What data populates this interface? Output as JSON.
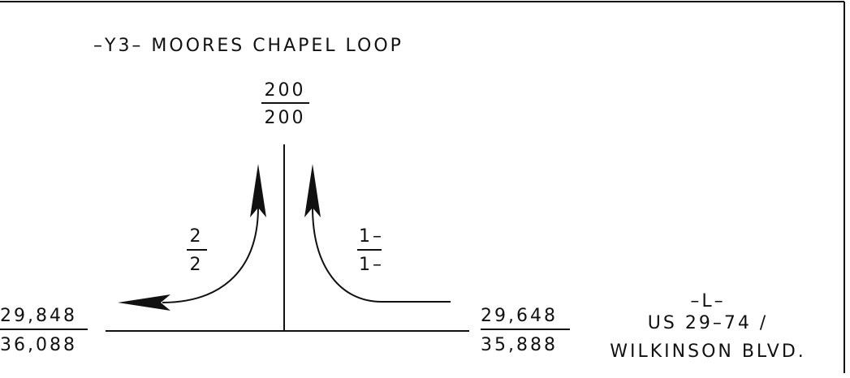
{
  "title": "–Y3– MOORES CHAPEL LOOP",
  "north": {
    "top": "200",
    "bottom": "200"
  },
  "left_turn": {
    "top": "2",
    "bottom": "2"
  },
  "right_turn": {
    "top": "1–",
    "bottom": "1–"
  },
  "west": {
    "top": "29,848",
    "bottom": "36,088"
  },
  "east": {
    "top": "29,648",
    "bottom": "35,888"
  },
  "road": {
    "designation": "–L–",
    "route": "US 29–74 /",
    "name": "WILKINSON BLVD."
  }
}
